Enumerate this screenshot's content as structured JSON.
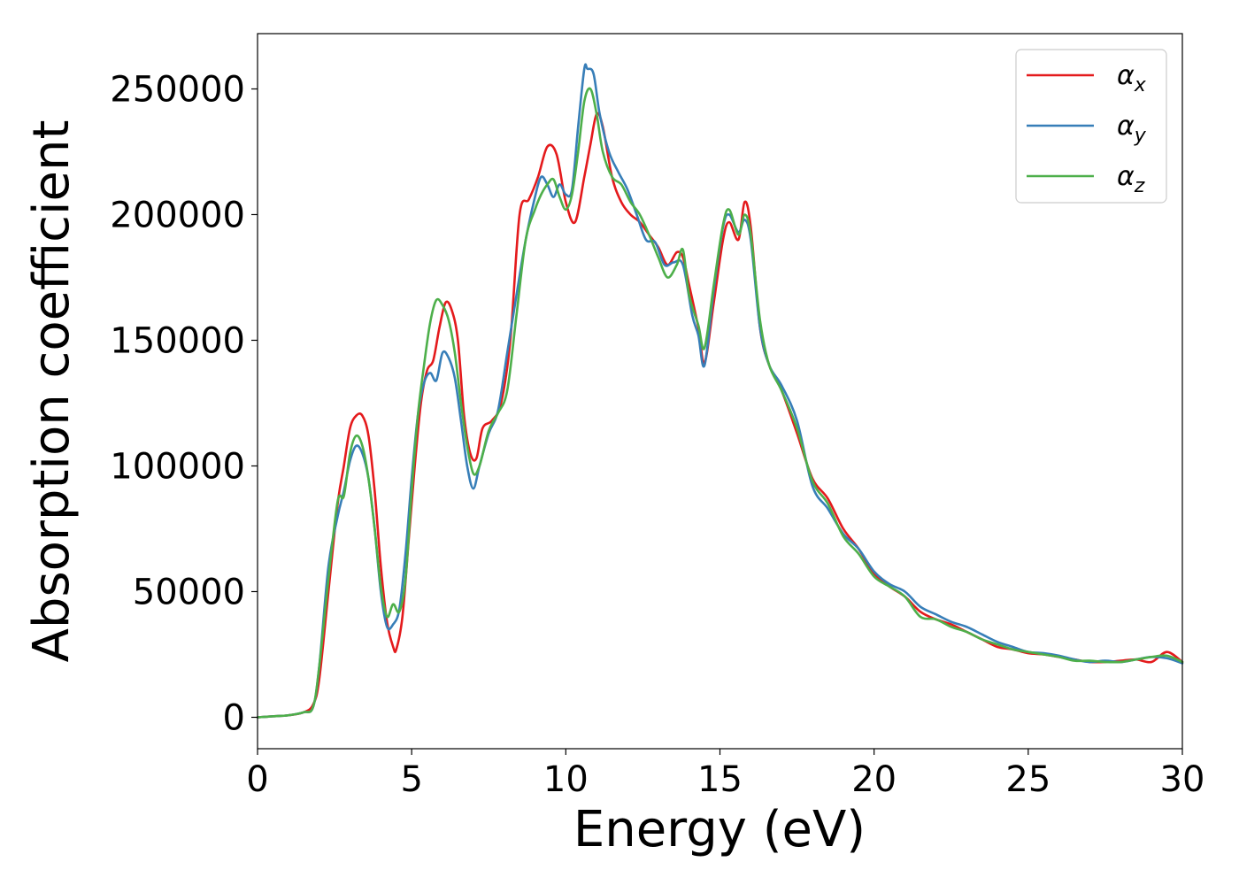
{
  "chart_data": {
    "type": "line",
    "title": "",
    "xlabel": "Energy (eV)",
    "ylabel": "Absorption coefficient",
    "xlim": [
      0,
      30
    ],
    "ylim": [
      -12500,
      272000
    ],
    "xticks": [
      0,
      5,
      10,
      15,
      20,
      25,
      30
    ],
    "xtick_labels": [
      "0",
      "5",
      "10",
      "15",
      "20",
      "25",
      "30"
    ],
    "yticks": [
      0,
      50000,
      100000,
      150000,
      200000,
      250000
    ],
    "ytick_labels": [
      "0",
      "50000",
      "100000",
      "150000",
      "200000",
      "250000"
    ],
    "grid": false,
    "legend_position": "top-right",
    "series": [
      {
        "name": "α",
        "subscript": "x",
        "color": "#e41a1c",
        "x": [
          0,
          0.5,
          1,
          1.5,
          1.8,
          2,
          2.3,
          2.6,
          2.8,
          3,
          3.2,
          3.4,
          3.6,
          3.8,
          4,
          4.2,
          4.4,
          4.5,
          4.7,
          4.9,
          5.1,
          5.3,
          5.5,
          5.7,
          5.9,
          6.1,
          6.3,
          6.5,
          6.7,
          6.9,
          7.1,
          7.3,
          7.6,
          7.9,
          8.2,
          8.5,
          8.8,
          9.1,
          9.4,
          9.7,
          10,
          10.3,
          10.6,
          10.8,
          11,
          11.2,
          11.5,
          11.8,
          12.1,
          12.4,
          12.7,
          13,
          13.3,
          13.6,
          13.8,
          14,
          14.3,
          14.5,
          14.8,
          15.1,
          15.3,
          15.6,
          15.8,
          16,
          16.3,
          16.6,
          17,
          17.5,
          18,
          18.5,
          19,
          19.5,
          20,
          20.5,
          21,
          21.5,
          22,
          22.5,
          23,
          23.5,
          24,
          24.5,
          25,
          25.5,
          26,
          26.5,
          27,
          27.5,
          28,
          28.5,
          29,
          29.5,
          30
        ],
        "values": [
          0,
          400,
          800,
          2000,
          5000,
          15000,
          50000,
          85000,
          100000,
          115000,
          120000,
          120000,
          112000,
          90000,
          60000,
          38000,
          28000,
          27000,
          40000,
          70000,
          100000,
          125000,
          138000,
          142000,
          155000,
          165000,
          162000,
          150000,
          120000,
          105000,
          103000,
          115000,
          118000,
          125000,
          150000,
          200000,
          206000,
          215000,
          227000,
          224000,
          205000,
          197000,
          215000,
          228000,
          240000,
          235000,
          215000,
          205000,
          200000,
          197000,
          192000,
          187000,
          180000,
          185000,
          183000,
          172000,
          155000,
          141000,
          165000,
          190000,
          197000,
          190000,
          205000,
          195000,
          155000,
          140000,
          130000,
          113000,
          95000,
          87000,
          75000,
          67000,
          57000,
          52000,
          48000,
          42000,
          39000,
          37000,
          34000,
          31000,
          28000,
          27000,
          25500,
          25000,
          24000,
          23000,
          22000,
          22000,
          22500,
          23000,
          22000,
          26000,
          22000
        ]
      },
      {
        "name": "α",
        "subscript": "y",
        "color": "#377eb8",
        "x": [
          0,
          0.5,
          1,
          1.5,
          1.8,
          2,
          2.3,
          2.6,
          2.8,
          3,
          3.2,
          3.4,
          3.6,
          3.8,
          4,
          4.2,
          4.4,
          4.6,
          4.8,
          5,
          5.2,
          5.4,
          5.6,
          5.8,
          6,
          6.2,
          6.4,
          6.6,
          6.8,
          7,
          7.2,
          7.5,
          7.8,
          8.1,
          8.4,
          8.7,
          9,
          9.2,
          9.4,
          9.6,
          9.8,
          10,
          10.2,
          10.4,
          10.6,
          10.7,
          10.9,
          11.1,
          11.4,
          11.7,
          12,
          12.3,
          12.6,
          12.9,
          13.2,
          13.5,
          13.8,
          14.1,
          14.3,
          14.5,
          14.8,
          15.1,
          15.3,
          15.6,
          15.8,
          16,
          16.3,
          16.6,
          17,
          17.5,
          18,
          18.5,
          19,
          19.5,
          20,
          20.5,
          21,
          21.5,
          22,
          22.5,
          23,
          23.5,
          24,
          24.5,
          25,
          25.5,
          26,
          26.5,
          27,
          27.5,
          28,
          28.5,
          29,
          29.5,
          30
        ],
        "values": [
          0,
          400,
          800,
          2000,
          4000,
          20000,
          60000,
          80000,
          90000,
          102000,
          108000,
          105000,
          95000,
          75000,
          50000,
          36000,
          37000,
          43000,
          65000,
          95000,
          120000,
          133000,
          137000,
          134000,
          145000,
          143000,
          135000,
          118000,
          100000,
          91000,
          100000,
          113000,
          122000,
          145000,
          168000,
          190000,
          207000,
          215000,
          212000,
          207000,
          212000,
          208000,
          210000,
          235000,
          258000,
          258000,
          256000,
          240000,
          225000,
          217000,
          210000,
          200000,
          190000,
          189000,
          180000,
          181000,
          180000,
          160000,
          152000,
          140000,
          170000,
          195000,
          200000,
          193000,
          198000,
          190000,
          155000,
          140000,
          132000,
          118000,
          92000,
          83000,
          73000,
          67000,
          58000,
          53000,
          50000,
          44000,
          41000,
          38000,
          36000,
          33000,
          30000,
          28000,
          26000,
          25500,
          24500,
          23000,
          22000,
          22500,
          22000,
          23000,
          24000,
          23500,
          21500
        ]
      },
      {
        "name": "α",
        "subscript": "z",
        "color": "#4daf4a",
        "x": [
          0,
          0.5,
          1,
          1.5,
          1.8,
          2,
          2.3,
          2.6,
          2.8,
          3,
          3.2,
          3.4,
          3.6,
          3.8,
          4,
          4.2,
          4.4,
          4.6,
          4.8,
          5,
          5.2,
          5.4,
          5.6,
          5.8,
          6,
          6.2,
          6.4,
          6.6,
          6.8,
          7,
          7.2,
          7.5,
          7.8,
          8.1,
          8.4,
          8.7,
          9,
          9.2,
          9.4,
          9.6,
          9.8,
          10,
          10.2,
          10.4,
          10.6,
          10.8,
          11,
          11.2,
          11.5,
          11.8,
          12.1,
          12.4,
          12.7,
          13,
          13.3,
          13.6,
          13.8,
          14,
          14.3,
          14.5,
          14.8,
          15.1,
          15.3,
          15.6,
          15.8,
          16,
          16.3,
          16.6,
          17,
          17.5,
          18,
          18.5,
          19,
          19.5,
          20,
          20.5,
          21,
          21.5,
          22,
          22.5,
          23,
          23.5,
          24,
          24.5,
          25,
          25.5,
          26,
          26.5,
          27,
          27.5,
          28,
          28.5,
          29,
          29.5,
          30
        ],
        "values": [
          0,
          400,
          800,
          2000,
          4000,
          20000,
          55000,
          86000,
          88000,
          105000,
          112000,
          108000,
          95000,
          75000,
          52000,
          40000,
          45000,
          42000,
          55000,
          90000,
          120000,
          140000,
          157000,
          166000,
          164000,
          158000,
          145000,
          125000,
          108000,
          97000,
          100000,
          114000,
          121000,
          130000,
          160000,
          190000,
          202000,
          208000,
          212000,
          214000,
          207000,
          202000,
          208000,
          225000,
          245000,
          250000,
          240000,
          225000,
          215000,
          212000,
          205000,
          200000,
          192000,
          183000,
          175000,
          180000,
          186000,
          168000,
          156000,
          147000,
          172000,
          196000,
          202000,
          192000,
          200000,
          192000,
          158000,
          140000,
          130000,
          115000,
          94000,
          85000,
          72000,
          65000,
          56000,
          52000,
          48000,
          40000,
          39000,
          36000,
          34000,
          31000,
          29000,
          27000,
          26000,
          25000,
          24000,
          22500,
          22500,
          22000,
          22000,
          23000,
          24000,
          24500,
          22000
        ]
      }
    ]
  }
}
